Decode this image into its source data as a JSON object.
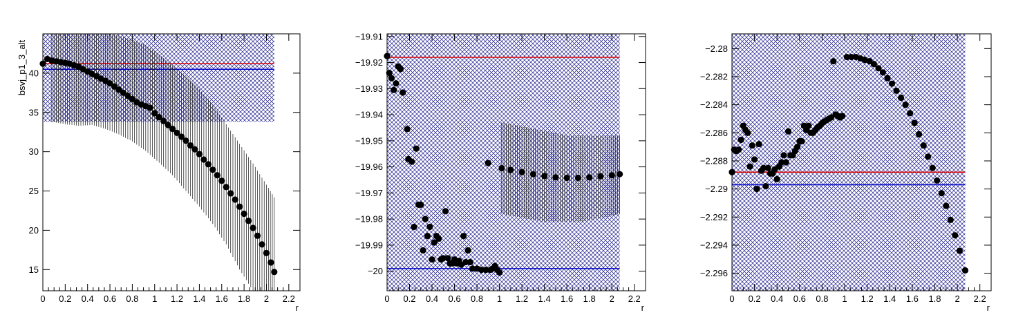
{
  "chart_data": [
    {
      "type": "scatter",
      "title": "",
      "xlabel": "r",
      "ylabel": "bsvj_p1_3_alt",
      "xlim": [
        0,
        2.3
      ],
      "ylim": [
        12.3,
        45
      ],
      "xticks": [
        0,
        0.2,
        0.4,
        0.6,
        0.8,
        1,
        1.2,
        1.4,
        1.6,
        1.8,
        2,
        2.2
      ],
      "xtick_labels": [
        "0",
        "0.2",
        "0.4",
        "0.6",
        "0.8",
        "1",
        "1.2",
        "1.4",
        "1.6",
        "1.8",
        "2",
        "2.2"
      ],
      "yticks": [
        15,
        20,
        25,
        30,
        35,
        40
      ],
      "ytick_labels": [
        "15",
        "20",
        "25",
        "30",
        "35",
        "40"
      ],
      "red_line": 41.2,
      "blue_line": 40.5,
      "band": {
        "x": [
          0,
          2.07
        ],
        "y": [
          33.8,
          45
        ]
      },
      "points": [
        {
          "x": 0.0,
          "y": 41.2
        },
        {
          "x": 0.04,
          "y": 41.8
        },
        {
          "x": 0.08,
          "y": 41.6
        },
        {
          "x": 0.12,
          "y": 41.5
        },
        {
          "x": 0.16,
          "y": 41.4
        },
        {
          "x": 0.2,
          "y": 41.3
        },
        {
          "x": 0.24,
          "y": 41.2
        },
        {
          "x": 0.28,
          "y": 41.0
        },
        {
          "x": 0.32,
          "y": 40.8
        },
        {
          "x": 0.36,
          "y": 40.5
        },
        {
          "x": 0.4,
          "y": 40.2
        },
        {
          "x": 0.44,
          "y": 39.9
        },
        {
          "x": 0.48,
          "y": 39.6
        },
        {
          "x": 0.52,
          "y": 39.3
        },
        {
          "x": 0.56,
          "y": 39.0
        },
        {
          "x": 0.6,
          "y": 38.7
        },
        {
          "x": 0.64,
          "y": 38.3
        },
        {
          "x": 0.68,
          "y": 37.9
        },
        {
          "x": 0.72,
          "y": 37.5
        },
        {
          "x": 0.76,
          "y": 37.1
        },
        {
          "x": 0.8,
          "y": 36.7
        },
        {
          "x": 0.84,
          "y": 36.3
        },
        {
          "x": 0.88,
          "y": 36.0
        },
        {
          "x": 0.92,
          "y": 35.8
        },
        {
          "x": 0.96,
          "y": 35.6
        },
        {
          "x": 1.0,
          "y": 34.9
        },
        {
          "x": 1.04,
          "y": 34.4
        },
        {
          "x": 1.08,
          "y": 33.9
        },
        {
          "x": 1.12,
          "y": 33.4
        },
        {
          "x": 1.16,
          "y": 32.9
        },
        {
          "x": 1.2,
          "y": 32.4
        },
        {
          "x": 1.24,
          "y": 31.9
        },
        {
          "x": 1.28,
          "y": 31.4
        },
        {
          "x": 1.32,
          "y": 30.8
        },
        {
          "x": 1.36,
          "y": 30.3
        },
        {
          "x": 1.4,
          "y": 29.7
        },
        {
          "x": 1.44,
          "y": 29.0
        },
        {
          "x": 1.48,
          "y": 28.4
        },
        {
          "x": 1.52,
          "y": 27.7
        },
        {
          "x": 1.56,
          "y": 27.0
        },
        {
          "x": 1.6,
          "y": 26.3
        },
        {
          "x": 1.64,
          "y": 25.5
        },
        {
          "x": 1.68,
          "y": 24.7
        },
        {
          "x": 1.72,
          "y": 23.9
        },
        {
          "x": 1.76,
          "y": 23.0
        },
        {
          "x": 1.8,
          "y": 22.1
        },
        {
          "x": 1.84,
          "y": 21.2
        },
        {
          "x": 1.88,
          "y": 20.3
        },
        {
          "x": 1.92,
          "y": 19.3
        },
        {
          "x": 1.96,
          "y": 18.2
        },
        {
          "x": 2.0,
          "y": 17.1
        },
        {
          "x": 2.04,
          "y": 15.9
        },
        {
          "x": 2.07,
          "y": 14.7
        }
      ],
      "error_bars": [
        {
          "x": 0.08,
          "lo": 33.8,
          "hi": 45
        },
        {
          "x": 0.2,
          "lo": 33.5,
          "hi": 45
        },
        {
          "x": 0.32,
          "lo": 33.3,
          "hi": 45
        },
        {
          "x": 0.44,
          "lo": 33.4,
          "hi": 45
        },
        {
          "x": 0.56,
          "lo": 32.9,
          "hi": 45
        },
        {
          "x": 0.68,
          "lo": 32.2,
          "hi": 44.8
        },
        {
          "x": 0.8,
          "lo": 31.3,
          "hi": 44.2
        },
        {
          "x": 0.92,
          "lo": 30.1,
          "hi": 43.6
        },
        {
          "x": 1.04,
          "lo": 28.6,
          "hi": 42.4
        },
        {
          "x": 1.16,
          "lo": 27.0,
          "hi": 41.0
        },
        {
          "x": 1.28,
          "lo": 25.0,
          "hi": 39.6
        },
        {
          "x": 1.4,
          "lo": 23.0,
          "hi": 38.0
        },
        {
          "x": 1.52,
          "lo": 20.8,
          "hi": 36.0
        },
        {
          "x": 1.64,
          "lo": 18.2,
          "hi": 33.5
        },
        {
          "x": 1.76,
          "lo": 15.0,
          "hi": 31.0
        },
        {
          "x": 1.88,
          "lo": 12.3,
          "hi": 28.5
        },
        {
          "x": 2.0,
          "lo": 12.3,
          "hi": 25.8
        },
        {
          "x": 2.07,
          "lo": 12.3,
          "hi": 24.2
        }
      ]
    },
    {
      "type": "scatter",
      "title": "",
      "xlabel": "r",
      "ylabel": "",
      "xlim": [
        0,
        2.3
      ],
      "ylim": [
        -20.0075,
        -19.909
      ],
      "xticks": [
        0,
        0.2,
        0.4,
        0.6,
        0.8,
        1,
        1.2,
        1.4,
        1.6,
        1.8,
        2,
        2.2
      ],
      "xtick_labels": [
        "0",
        "0.2",
        "0.4",
        "0.6",
        "0.8",
        "1",
        "1.2",
        "1.4",
        "1.6",
        "1.8",
        "2",
        "2.2"
      ],
      "yticks": [
        -19.91,
        -19.92,
        -19.93,
        -19.94,
        -19.95,
        -19.96,
        -19.97,
        -19.98,
        -19.99,
        -20.0
      ],
      "ytick_labels": [
        "−19.91",
        "−19.92",
        "−19.93",
        "−19.94",
        "−19.95",
        "−19.96",
        "−19.97",
        "−19.98",
        "−19.99",
        "−20"
      ],
      "red_line": -19.918,
      "blue_line": -19.999,
      "band": {
        "x": [
          0,
          2.07
        ],
        "y": [
          -20.0075,
          -19.909
        ]
      },
      "points": [
        {
          "x": 0.0,
          "y": -19.9175
        },
        {
          "x": 0.02,
          "y": -19.924
        },
        {
          "x": 0.04,
          "y": -19.926
        },
        {
          "x": 0.06,
          "y": -19.9305
        },
        {
          "x": 0.08,
          "y": -19.928
        },
        {
          "x": 0.1,
          "y": -19.9215
        },
        {
          "x": 0.12,
          "y": -19.9225
        },
        {
          "x": 0.14,
          "y": -19.9315
        },
        {
          "x": 0.18,
          "y": -19.9455
        },
        {
          "x": 0.19,
          "y": -19.957
        },
        {
          "x": 0.22,
          "y": -19.958
        },
        {
          "x": 0.24,
          "y": -19.983
        },
        {
          "x": 0.26,
          "y": -19.953
        },
        {
          "x": 0.28,
          "y": -19.9745
        },
        {
          "x": 0.3,
          "y": -19.9745
        },
        {
          "x": 0.32,
          "y": -19.992
        },
        {
          "x": 0.34,
          "y": -19.98
        },
        {
          "x": 0.36,
          "y": -19.9865
        },
        {
          "x": 0.38,
          "y": -19.983
        },
        {
          "x": 0.4,
          "y": -19.9955
        },
        {
          "x": 0.42,
          "y": -19.989
        },
        {
          "x": 0.44,
          "y": -19.9865
        },
        {
          "x": 0.46,
          "y": -19.9875
        },
        {
          "x": 0.48,
          "y": -19.9955
        },
        {
          "x": 0.5,
          "y": -19.995
        },
        {
          "x": 0.52,
          "y": -19.977
        },
        {
          "x": 0.54,
          "y": -19.995
        },
        {
          "x": 0.56,
          "y": -19.997
        },
        {
          "x": 0.58,
          "y": -19.997
        },
        {
          "x": 0.6,
          "y": -19.9955
        },
        {
          "x": 0.62,
          "y": -19.997
        },
        {
          "x": 0.64,
          "y": -19.996
        },
        {
          "x": 0.66,
          "y": -19.9975
        },
        {
          "x": 0.68,
          "y": -19.9865
        },
        {
          "x": 0.7,
          "y": -19.9965
        },
        {
          "x": 0.72,
          "y": -19.992
        },
        {
          "x": 0.74,
          "y": -19.9965
        },
        {
          "x": 0.76,
          "y": -19.999
        },
        {
          "x": 0.8,
          "y": -19.999
        },
        {
          "x": 0.84,
          "y": -19.9995
        },
        {
          "x": 0.88,
          "y": -19.9995
        },
        {
          "x": 0.9,
          "y": -19.9585
        },
        {
          "x": 0.92,
          "y": -19.9995
        },
        {
          "x": 0.94,
          "y": -19.999
        },
        {
          "x": 0.96,
          "y": -19.998
        },
        {
          "x": 0.98,
          "y": -19.9995
        },
        {
          "x": 1.0,
          "y": -20.0005
        },
        {
          "x": 1.02,
          "y": -19.9605
        },
        {
          "x": 1.1,
          "y": -19.9612
        },
        {
          "x": 1.2,
          "y": -19.962
        },
        {
          "x": 1.3,
          "y": -19.9628
        },
        {
          "x": 1.4,
          "y": -19.9635
        },
        {
          "x": 1.5,
          "y": -19.964
        },
        {
          "x": 1.6,
          "y": -19.9642
        },
        {
          "x": 1.7,
          "y": -19.9642
        },
        {
          "x": 1.8,
          "y": -19.964
        },
        {
          "x": 1.9,
          "y": -19.9636
        },
        {
          "x": 2.0,
          "y": -19.9632
        },
        {
          "x": 2.07,
          "y": -19.9628
        }
      ],
      "error_bars": [
        {
          "x": 1.02,
          "lo": -19.978,
          "hi": -19.943
        },
        {
          "x": 1.14,
          "lo": -19.979,
          "hi": -19.944
        },
        {
          "x": 1.26,
          "lo": -19.98,
          "hi": -19.945
        },
        {
          "x": 1.38,
          "lo": -19.981,
          "hi": -19.946
        },
        {
          "x": 1.5,
          "lo": -19.981,
          "hi": -19.947
        },
        {
          "x": 1.62,
          "lo": -19.981,
          "hi": -19.948
        },
        {
          "x": 1.74,
          "lo": -19.981,
          "hi": -19.948
        },
        {
          "x": 1.86,
          "lo": -19.98,
          "hi": -19.948
        },
        {
          "x": 1.98,
          "lo": -19.979,
          "hi": -19.948
        },
        {
          "x": 2.07,
          "lo": -19.978,
          "hi": -19.948
        }
      ]
    },
    {
      "type": "scatter",
      "title": "",
      "xlabel": "r",
      "ylabel": "",
      "xlim": [
        0,
        2.3
      ],
      "ylim": [
        -2.29725,
        -2.27895
      ],
      "xticks": [
        0,
        0.2,
        0.4,
        0.6,
        0.8,
        1,
        1.2,
        1.4,
        1.6,
        1.8,
        2,
        2.2
      ],
      "xtick_labels": [
        "0",
        "0.2",
        "0.4",
        "0.6",
        "0.8",
        "1",
        "1.2",
        "1.4",
        "1.6",
        "1.8",
        "2",
        "2.2"
      ],
      "yticks": [
        -2.28,
        -2.282,
        -2.284,
        -2.286,
        -2.288,
        -2.29,
        -2.292,
        -2.294,
        -2.296
      ],
      "ytick_labels": [
        "−2.28",
        "−2.282",
        "−2.284",
        "−2.286",
        "−2.288",
        "−2.29",
        "−2.292",
        "−2.294",
        "−2.296"
      ],
      "red_line": -2.2888,
      "blue_line": -2.2897,
      "band": {
        "x": [
          0,
          2.07
        ],
        "y": [
          -2.29725,
          -2.27895
        ]
      },
      "points": [
        {
          "x": 0.0,
          "y": -2.2888
        },
        {
          "x": 0.02,
          "y": -2.2872
        },
        {
          "x": 0.04,
          "y": -2.2873
        },
        {
          "x": 0.06,
          "y": -2.2872
        },
        {
          "x": 0.08,
          "y": -2.2865
        },
        {
          "x": 0.1,
          "y": -2.2855
        },
        {
          "x": 0.12,
          "y": -2.2858
        },
        {
          "x": 0.14,
          "y": -2.286
        },
        {
          "x": 0.16,
          "y": -2.2884
        },
        {
          "x": 0.18,
          "y": -2.2869
        },
        {
          "x": 0.2,
          "y": -2.2879
        },
        {
          "x": 0.22,
          "y": -2.29
        },
        {
          "x": 0.24,
          "y": -2.2868
        },
        {
          "x": 0.26,
          "y": -2.2887
        },
        {
          "x": 0.28,
          "y": -2.2885
        },
        {
          "x": 0.3,
          "y": -2.2898
        },
        {
          "x": 0.32,
          "y": -2.2885
        },
        {
          "x": 0.34,
          "y": -2.2889
        },
        {
          "x": 0.36,
          "y": -2.2889
        },
        {
          "x": 0.38,
          "y": -2.2886
        },
        {
          "x": 0.4,
          "y": -2.2893
        },
        {
          "x": 0.42,
          "y": -2.2884
        },
        {
          "x": 0.44,
          "y": -2.2881
        },
        {
          "x": 0.46,
          "y": -2.2876
        },
        {
          "x": 0.48,
          "y": -2.2881
        },
        {
          "x": 0.5,
          "y": -2.2859
        },
        {
          "x": 0.52,
          "y": -2.2876
        },
        {
          "x": 0.54,
          "y": -2.2876
        },
        {
          "x": 0.56,
          "y": -2.2873
        },
        {
          "x": 0.58,
          "y": -2.287
        },
        {
          "x": 0.6,
          "y": -2.2866
        },
        {
          "x": 0.62,
          "y": -2.2866
        },
        {
          "x": 0.64,
          "y": -2.2855
        },
        {
          "x": 0.66,
          "y": -2.2858
        },
        {
          "x": 0.68,
          "y": -2.2855
        },
        {
          "x": 0.7,
          "y": -2.286
        },
        {
          "x": 0.72,
          "y": -2.286
        },
        {
          "x": 0.74,
          "y": -2.2858
        },
        {
          "x": 0.76,
          "y": -2.2856
        },
        {
          "x": 0.78,
          "y": -2.2855
        },
        {
          "x": 0.8,
          "y": -2.2853
        },
        {
          "x": 0.82,
          "y": -2.2852
        },
        {
          "x": 0.84,
          "y": -2.2851
        },
        {
          "x": 0.86,
          "y": -2.285
        },
        {
          "x": 0.88,
          "y": -2.2849
        },
        {
          "x": 0.9,
          "y": -2.2809
        },
        {
          "x": 0.92,
          "y": -2.2847
        },
        {
          "x": 0.94,
          "y": -2.2848
        },
        {
          "x": 0.96,
          "y": -2.2849
        },
        {
          "x": 0.98,
          "y": -2.2848
        },
        {
          "x": 1.02,
          "y": -2.2806
        },
        {
          "x": 1.06,
          "y": -2.2806
        },
        {
          "x": 1.1,
          "y": -2.2806
        },
        {
          "x": 1.14,
          "y": -2.2807
        },
        {
          "x": 1.18,
          "y": -2.2808
        },
        {
          "x": 1.22,
          "y": -2.2809
        },
        {
          "x": 1.26,
          "y": -2.2811
        },
        {
          "x": 1.3,
          "y": -2.2814
        },
        {
          "x": 1.34,
          "y": -2.2817
        },
        {
          "x": 1.38,
          "y": -2.2821
        },
        {
          "x": 1.42,
          "y": -2.2825
        },
        {
          "x": 1.46,
          "y": -2.283
        },
        {
          "x": 1.5,
          "y": -2.2835
        },
        {
          "x": 1.54,
          "y": -2.284
        },
        {
          "x": 1.58,
          "y": -2.2846
        },
        {
          "x": 1.62,
          "y": -2.2853
        },
        {
          "x": 1.66,
          "y": -2.2861
        },
        {
          "x": 1.7,
          "y": -2.2869
        },
        {
          "x": 1.74,
          "y": -2.2877
        },
        {
          "x": 1.78,
          "y": -2.2885
        },
        {
          "x": 1.82,
          "y": -2.2894
        },
        {
          "x": 1.86,
          "y": -2.2903
        },
        {
          "x": 1.9,
          "y": -2.2912
        },
        {
          "x": 1.94,
          "y": -2.2922
        },
        {
          "x": 1.98,
          "y": -2.2933
        },
        {
          "x": 2.02,
          "y": -2.2944
        },
        {
          "x": 2.07,
          "y": -2.2958
        }
      ],
      "error_bars": []
    }
  ]
}
